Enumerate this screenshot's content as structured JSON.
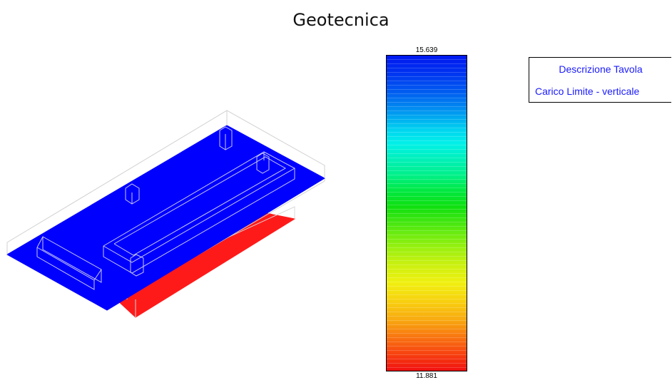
{
  "title": "Geotecnica",
  "scale": {
    "max": "15.639",
    "min": "11.881"
  },
  "legend": {
    "header": "Descrizione Tavola",
    "description": "Carico Limite - verticale"
  },
  "colors": {
    "slab": "#0000ff",
    "footing": "#ff0000",
    "legend_text": "#1a1aff"
  }
}
